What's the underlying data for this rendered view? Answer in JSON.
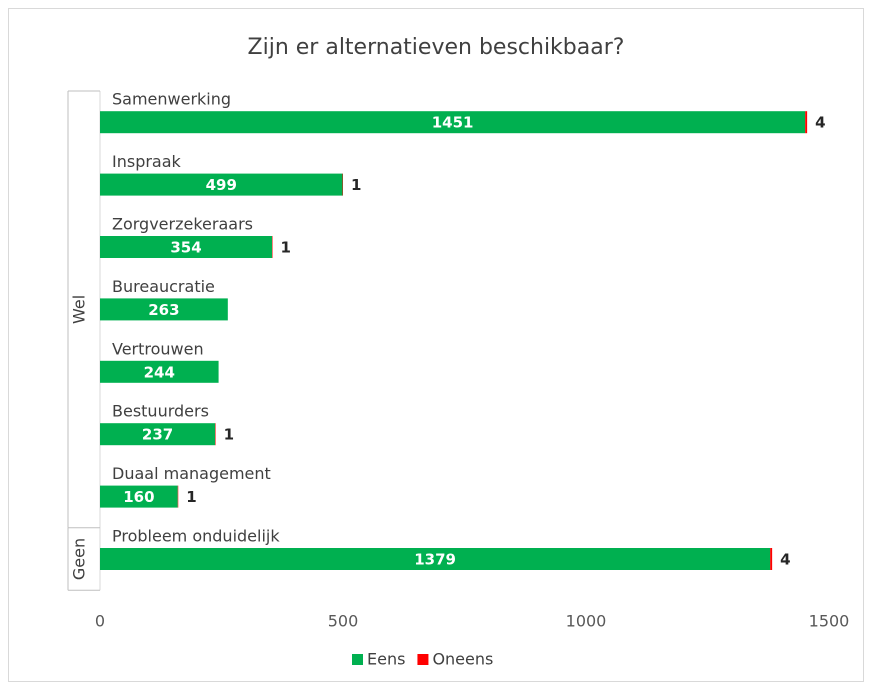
{
  "chart_data": {
    "type": "stacked-hbar",
    "title": "Zijn er alternatieven beschikbaar?",
    "groups": [
      {
        "name": "Wel",
        "size": 7
      },
      {
        "name": "Geen",
        "size": 1
      }
    ],
    "categories": [
      "Samenwerking",
      "Inspraak",
      "Zorgverzekeraars",
      "Bureaucratie",
      "Vertrouwen",
      "Bestuurders",
      "Duaal management",
      "Probleem onduidelijk"
    ],
    "series": [
      {
        "name": "Eens",
        "color": "#00b050",
        "values": [
          1451,
          499,
          354,
          263,
          244,
          237,
          160,
          1379
        ]
      },
      {
        "name": "Oneens",
        "color": "#ff0000",
        "values": [
          4,
          1,
          1,
          null,
          null,
          1,
          1,
          4
        ]
      }
    ],
    "xlim": [
      0,
      1500
    ],
    "xticks": [
      0,
      500,
      1000,
      1500
    ],
    "legend": "bottom"
  }
}
